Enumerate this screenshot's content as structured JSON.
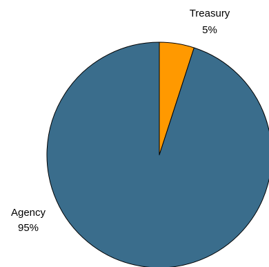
{
  "chart_data": {
    "type": "pie",
    "categories": [
      "Treasury",
      "Agency"
    ],
    "values": [
      5,
      95
    ],
    "value_labels": [
      "5%",
      "95%"
    ],
    "colors": [
      "#ff9900",
      "#3a6d8c"
    ],
    "start_angle_deg": 0,
    "direction": "clockwise",
    "legend": "none",
    "title": ""
  }
}
